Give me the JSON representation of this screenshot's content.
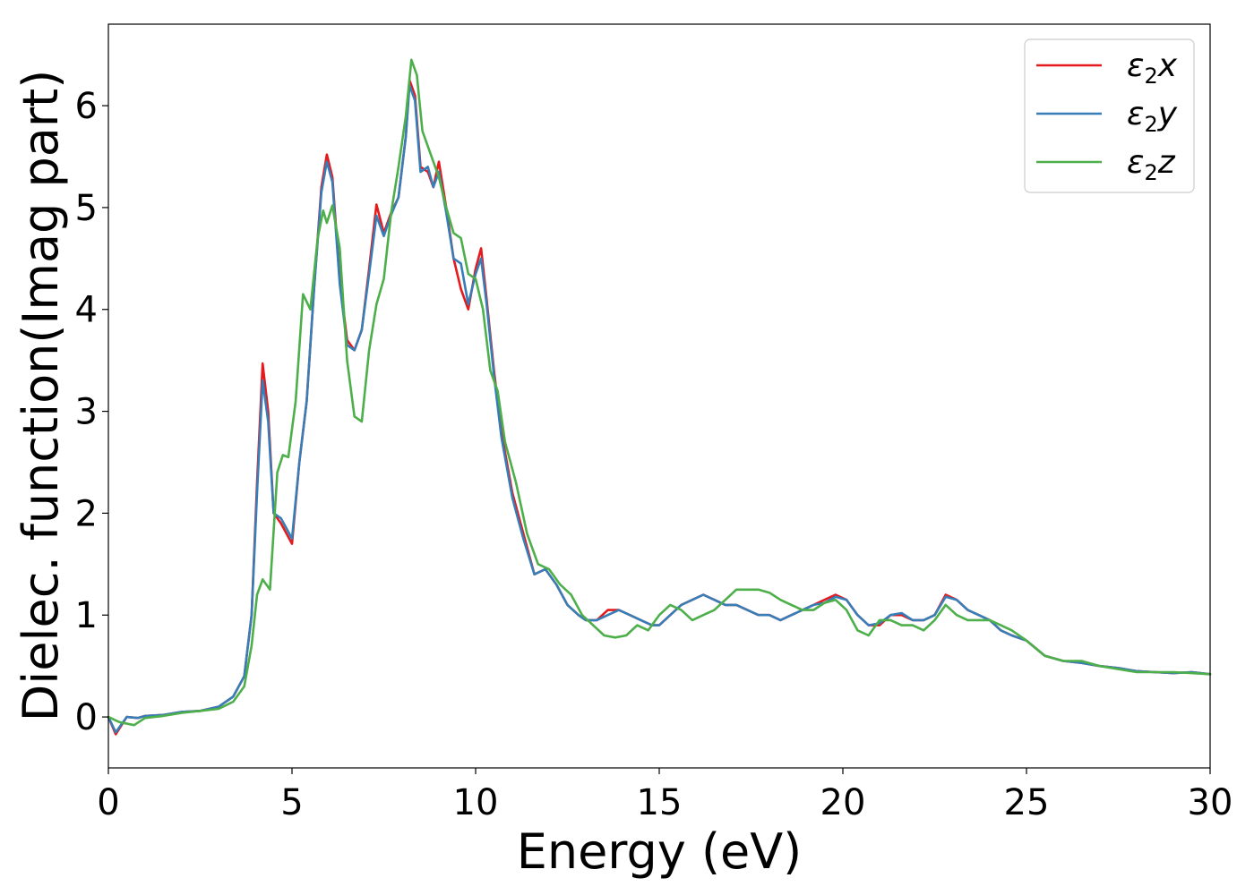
{
  "chart_data": {
    "type": "line",
    "xlabel": "Energy (eV)",
    "ylabel": "Dielec. function(Imag part)",
    "xlim": [
      0,
      30
    ],
    "ylim": [
      -0.5,
      6.8
    ],
    "xticks": [
      "0",
      "5",
      "10",
      "15",
      "20",
      "25",
      "30"
    ],
    "yticks": [
      "0",
      "1",
      "2",
      "3",
      "4",
      "5",
      "6"
    ],
    "grid": false,
    "legend_position": "top-right",
    "series": [
      {
        "name": "ε₂x",
        "legend_base": "ε",
        "legend_sub": "2",
        "legend_var": "x",
        "color": "#e41a1c",
        "x": [
          0,
          0.2,
          0.5,
          0.8,
          1.0,
          1.5,
          2.0,
          2.5,
          3.0,
          3.4,
          3.7,
          3.9,
          4.05,
          4.2,
          4.35,
          4.5,
          4.7,
          4.85,
          5.0,
          5.2,
          5.4,
          5.6,
          5.8,
          5.95,
          6.1,
          6.3,
          6.5,
          6.7,
          6.9,
          7.1,
          7.3,
          7.5,
          7.7,
          7.9,
          8.1,
          8.2,
          8.35,
          8.5,
          8.7,
          8.85,
          9.0,
          9.2,
          9.4,
          9.6,
          9.8,
          10.0,
          10.15,
          10.3,
          10.5,
          10.7,
          11.0,
          11.3,
          11.6,
          11.9,
          12.2,
          12.5,
          12.8,
          13.0,
          13.3,
          13.6,
          13.9,
          14.2,
          14.5,
          14.8,
          15.0,
          15.3,
          15.6,
          15.9,
          16.2,
          16.5,
          16.8,
          17.1,
          17.4,
          17.7,
          18.0,
          18.3,
          18.6,
          18.9,
          19.2,
          19.5,
          19.8,
          20.1,
          20.4,
          20.7,
          21.0,
          21.3,
          21.6,
          21.9,
          22.2,
          22.5,
          22.8,
          23.1,
          23.4,
          23.7,
          24.0,
          24.3,
          24.6,
          25.0,
          25.5,
          26.0,
          26.5,
          27.0,
          27.5,
          28.0,
          28.5,
          29.0,
          29.5,
          30.0
        ],
        "values": [
          0,
          -0.17,
          0,
          -0.01,
          0.01,
          0.02,
          0.05,
          0.06,
          0.1,
          0.2,
          0.4,
          1.0,
          2.3,
          3.47,
          3.0,
          2.0,
          1.9,
          1.8,
          1.7,
          2.5,
          3.1,
          4.2,
          5.2,
          5.52,
          5.3,
          4.3,
          3.7,
          3.6,
          3.8,
          4.4,
          5.03,
          4.75,
          4.95,
          5.1,
          5.7,
          6.25,
          6.1,
          5.4,
          5.35,
          5.2,
          5.45,
          5.0,
          4.5,
          4.2,
          4.0,
          4.4,
          4.6,
          4.1,
          3.4,
          2.8,
          2.2,
          1.8,
          1.4,
          1.45,
          1.3,
          1.1,
          1.0,
          0.95,
          0.95,
          1.05,
          1.05,
          1.0,
          0.95,
          0.9,
          0.9,
          1.0,
          1.1,
          1.15,
          1.2,
          1.15,
          1.1,
          1.1,
          1.05,
          1.0,
          1.0,
          0.95,
          1.0,
          1.05,
          1.1,
          1.15,
          1.2,
          1.15,
          1.0,
          0.9,
          0.9,
          1.0,
          1.0,
          0.95,
          0.95,
          1.0,
          1.2,
          1.15,
          1.05,
          1.0,
          0.95,
          0.85,
          0.8,
          0.75,
          0.6,
          0.55,
          0.53,
          0.5,
          0.48,
          0.45,
          0.44,
          0.43,
          0.44,
          0.42
        ]
      },
      {
        "name": "ε₂y",
        "legend_base": "ε",
        "legend_sub": "2",
        "legend_var": "y",
        "color": "#377eb8",
        "x": [
          0,
          0.2,
          0.5,
          0.8,
          1.0,
          1.5,
          2.0,
          2.5,
          3.0,
          3.4,
          3.7,
          3.9,
          4.05,
          4.2,
          4.35,
          4.5,
          4.7,
          4.85,
          5.0,
          5.2,
          5.4,
          5.6,
          5.8,
          5.95,
          6.1,
          6.3,
          6.5,
          6.7,
          6.9,
          7.1,
          7.3,
          7.5,
          7.7,
          7.9,
          8.1,
          8.2,
          8.35,
          8.5,
          8.7,
          8.85,
          9.0,
          9.2,
          9.4,
          9.6,
          9.8,
          10.0,
          10.15,
          10.3,
          10.5,
          10.7,
          11.0,
          11.3,
          11.6,
          11.9,
          12.2,
          12.5,
          12.8,
          13.0,
          13.3,
          13.6,
          13.9,
          14.2,
          14.5,
          14.8,
          15.0,
          15.3,
          15.6,
          15.9,
          16.2,
          16.5,
          16.8,
          17.1,
          17.4,
          17.7,
          18.0,
          18.3,
          18.6,
          18.9,
          19.2,
          19.5,
          19.8,
          20.1,
          20.4,
          20.7,
          21.0,
          21.3,
          21.6,
          21.9,
          22.2,
          22.5,
          22.8,
          23.1,
          23.4,
          23.7,
          24.0,
          24.3,
          24.6,
          25.0,
          25.5,
          26.0,
          26.5,
          27.0,
          27.5,
          28.0,
          28.5,
          29.0,
          29.5,
          30.0
        ],
        "values": [
          0,
          -0.15,
          0,
          -0.01,
          0.01,
          0.02,
          0.05,
          0.06,
          0.1,
          0.2,
          0.4,
          1.0,
          2.2,
          3.3,
          2.9,
          2.0,
          1.95,
          1.85,
          1.75,
          2.5,
          3.1,
          4.2,
          5.15,
          5.45,
          5.25,
          4.25,
          3.65,
          3.6,
          3.8,
          4.35,
          4.92,
          4.72,
          4.93,
          5.1,
          5.7,
          6.2,
          6.05,
          5.35,
          5.4,
          5.2,
          5.35,
          4.95,
          4.5,
          4.45,
          4.05,
          4.35,
          4.5,
          4.05,
          3.35,
          2.75,
          2.15,
          1.75,
          1.4,
          1.45,
          1.3,
          1.1,
          1.0,
          0.95,
          0.95,
          1.0,
          1.05,
          1.0,
          0.95,
          0.9,
          0.9,
          1.0,
          1.1,
          1.15,
          1.2,
          1.15,
          1.1,
          1.1,
          1.05,
          1.0,
          1.0,
          0.95,
          1.0,
          1.05,
          1.1,
          1.12,
          1.18,
          1.15,
          1.0,
          0.9,
          0.92,
          1.0,
          1.02,
          0.95,
          0.95,
          1.0,
          1.18,
          1.15,
          1.05,
          1.0,
          0.95,
          0.85,
          0.8,
          0.75,
          0.6,
          0.55,
          0.53,
          0.5,
          0.48,
          0.45,
          0.44,
          0.43,
          0.44,
          0.42
        ]
      },
      {
        "name": "ε₂z",
        "legend_base": "ε",
        "legend_sub": "2",
        "legend_var": "z",
        "color": "#4daf4a",
        "x": [
          0,
          0.3,
          0.7,
          1.0,
          1.5,
          2.0,
          2.5,
          3.0,
          3.4,
          3.7,
          3.9,
          4.05,
          4.2,
          4.4,
          4.6,
          4.75,
          4.9,
          5.1,
          5.3,
          5.5,
          5.7,
          5.85,
          5.95,
          6.1,
          6.3,
          6.5,
          6.7,
          6.9,
          7.1,
          7.3,
          7.5,
          7.7,
          7.9,
          8.1,
          8.25,
          8.4,
          8.55,
          8.7,
          8.85,
          9.0,
          9.2,
          9.4,
          9.6,
          9.8,
          10.0,
          10.2,
          10.4,
          10.6,
          10.8,
          11.1,
          11.4,
          11.7,
          12.0,
          12.3,
          12.6,
          12.9,
          13.2,
          13.5,
          13.8,
          14.1,
          14.4,
          14.7,
          15.0,
          15.3,
          15.6,
          15.9,
          16.2,
          16.5,
          16.8,
          17.1,
          17.4,
          17.7,
          18.0,
          18.3,
          18.6,
          18.9,
          19.2,
          19.5,
          19.8,
          20.1,
          20.4,
          20.7,
          21.0,
          21.3,
          21.6,
          21.9,
          22.2,
          22.5,
          22.8,
          23.1,
          23.4,
          23.7,
          24.0,
          24.3,
          24.6,
          25.0,
          25.5,
          26.0,
          26.5,
          27.0,
          27.5,
          28.0,
          28.5,
          29.0,
          29.5,
          30.0
        ],
        "values": [
          0,
          -0.05,
          -0.08,
          -0.01,
          0.01,
          0.04,
          0.06,
          0.08,
          0.15,
          0.3,
          0.7,
          1.2,
          1.35,
          1.25,
          2.4,
          2.57,
          2.55,
          3.1,
          4.15,
          4.0,
          4.7,
          4.97,
          4.85,
          5.02,
          4.6,
          3.5,
          2.95,
          2.9,
          3.6,
          4.05,
          4.3,
          4.95,
          5.4,
          5.9,
          6.45,
          6.3,
          5.75,
          5.6,
          5.45,
          5.3,
          5.0,
          4.75,
          4.7,
          4.35,
          4.3,
          4.0,
          3.4,
          3.2,
          2.7,
          2.3,
          1.8,
          1.5,
          1.45,
          1.3,
          1.2,
          1.0,
          0.9,
          0.8,
          0.78,
          0.8,
          0.9,
          0.85,
          1.0,
          1.1,
          1.05,
          0.95,
          1.0,
          1.05,
          1.15,
          1.25,
          1.25,
          1.25,
          1.22,
          1.15,
          1.1,
          1.05,
          1.05,
          1.12,
          1.15,
          1.05,
          0.85,
          0.8,
          0.95,
          0.95,
          0.9,
          0.9,
          0.85,
          0.95,
          1.1,
          1.0,
          0.95,
          0.95,
          0.95,
          0.9,
          0.85,
          0.75,
          0.6,
          0.55,
          0.55,
          0.5,
          0.47,
          0.44,
          0.44,
          0.44,
          0.43,
          0.42
        ]
      }
    ]
  }
}
